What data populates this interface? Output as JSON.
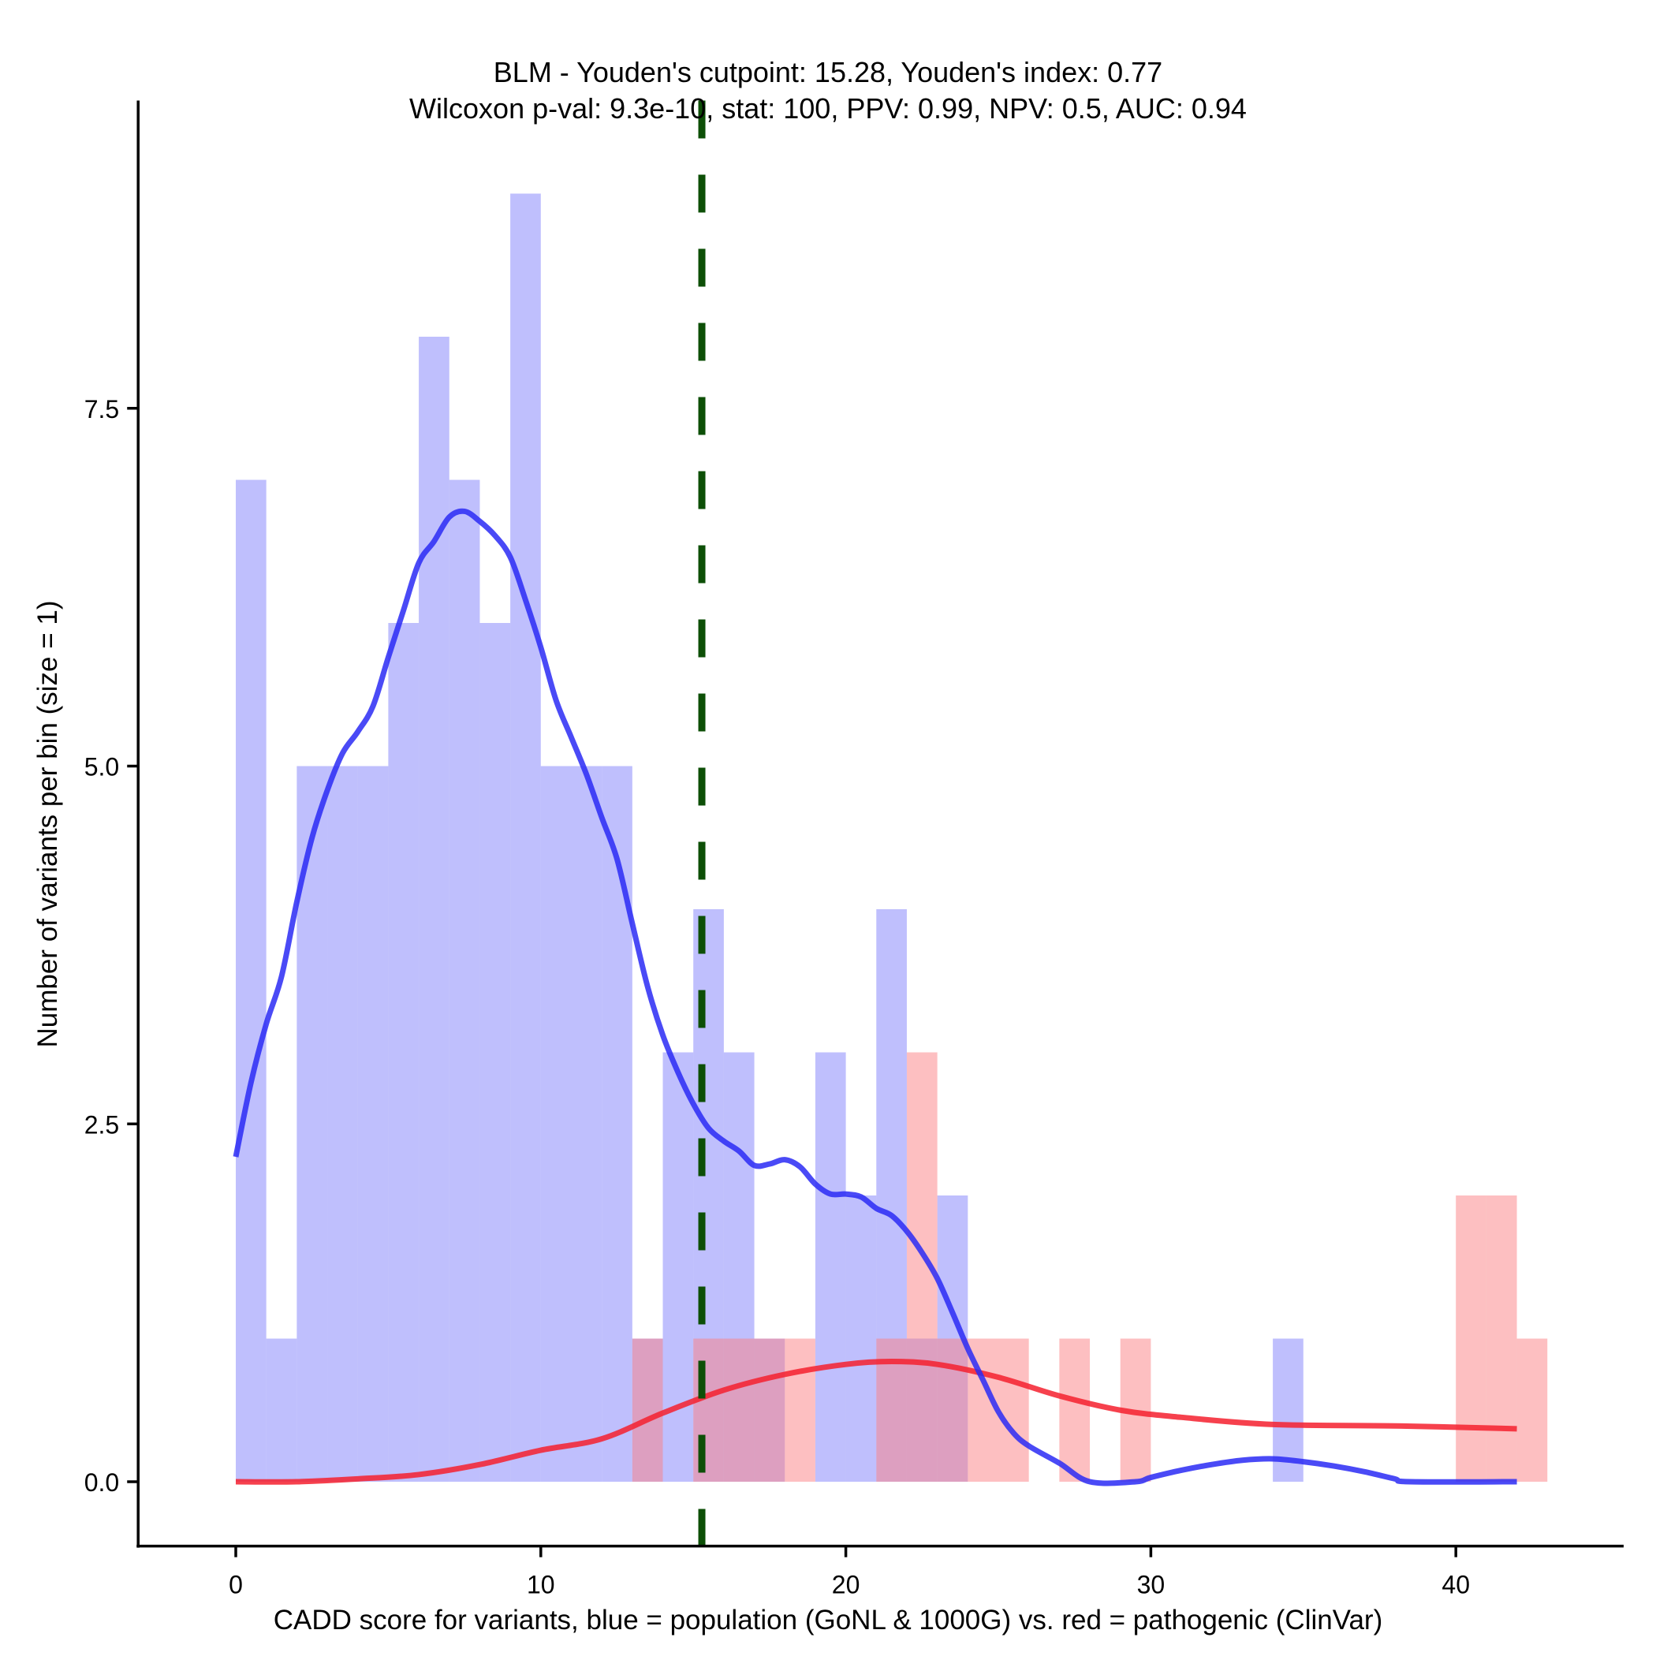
{
  "chart_data": {
    "type": "histogram",
    "title_line1": "BLM - Youden's cutpoint: 15.28, Youden's index: 0.77",
    "title_line2": "Wilcoxon p-val: 9.3e-10, stat: 100, PPV: 0.99, NPV: 0.5, AUC: 0.94",
    "xlabel": "CADD score for variants, blue = population (GoNL & 1000G) vs. red = pathogenic (ClinVar)",
    "ylabel": "Number of variants per bin (size = 1)",
    "xlim": [
      -3.2,
      45.5
    ],
    "ylim": [
      -0.45,
      9.65
    ],
    "x_ticks": [
      0,
      10,
      20,
      30,
      40
    ],
    "x_tick_labels": [
      "0",
      "10",
      "20",
      "30",
      "40"
    ],
    "y_ticks": [
      0,
      2.5,
      5,
      7.5
    ],
    "y_tick_labels": [
      "0.0",
      "2.5",
      "5.0",
      "7.5"
    ],
    "bin_width": 1,
    "cutpoint": 15.28,
    "grid": false,
    "legend": "none",
    "colors": {
      "population_bar": "#bfbffd",
      "pathogenic_bar": "#fdbfc1",
      "overlap_bar": "#ce8fc1",
      "population_line": "#2a2af5",
      "pathogenic_line": "#f5202e",
      "cutpoint_line": "#0d4f07"
    },
    "series": [
      {
        "name": "population (GoNL & 1000G)",
        "color": "blue",
        "bins": [
          {
            "x": 0,
            "count": 7
          },
          {
            "x": 1,
            "count": 1
          },
          {
            "x": 2,
            "count": 5
          },
          {
            "x": 3,
            "count": 5
          },
          {
            "x": 4,
            "count": 5
          },
          {
            "x": 5,
            "count": 6
          },
          {
            "x": 6,
            "count": 8
          },
          {
            "x": 7,
            "count": 7
          },
          {
            "x": 8,
            "count": 6
          },
          {
            "x": 9,
            "count": 9
          },
          {
            "x": 10,
            "count": 5
          },
          {
            "x": 11,
            "count": 5
          },
          {
            "x": 12,
            "count": 5
          },
          {
            "x": 13,
            "count": 1
          },
          {
            "x": 14,
            "count": 3
          },
          {
            "x": 15,
            "count": 4
          },
          {
            "x": 16,
            "count": 3
          },
          {
            "x": 17,
            "count": 1
          },
          {
            "x": 19,
            "count": 3
          },
          {
            "x": 20,
            "count": 2
          },
          {
            "x": 21,
            "count": 4
          },
          {
            "x": 22,
            "count": 1
          },
          {
            "x": 23,
            "count": 2
          },
          {
            "x": 34,
            "count": 1
          }
        ],
        "density_curve": [
          [
            0,
            2.27
          ],
          [
            0.5,
            2.79
          ],
          [
            1,
            3.2
          ],
          [
            1.5,
            3.53
          ],
          [
            2,
            4.05
          ],
          [
            2.5,
            4.5
          ],
          [
            3,
            4.83
          ],
          [
            3.5,
            5.09
          ],
          [
            4,
            5.24
          ],
          [
            4.5,
            5.42
          ],
          [
            5,
            5.76
          ],
          [
            5.5,
            6.09
          ],
          [
            6,
            6.42
          ],
          [
            6.5,
            6.57
          ],
          [
            7,
            6.74
          ],
          [
            7.5,
            6.78
          ],
          [
            8,
            6.71
          ],
          [
            8.5,
            6.61
          ],
          [
            9,
            6.46
          ],
          [
            9.5,
            6.16
          ],
          [
            10,
            5.83
          ],
          [
            10.5,
            5.46
          ],
          [
            11,
            5.2
          ],
          [
            11.5,
            4.94
          ],
          [
            12,
            4.64
          ],
          [
            12.5,
            4.35
          ],
          [
            13,
            3.9
          ],
          [
            13.5,
            3.46
          ],
          [
            14,
            3.12
          ],
          [
            14.5,
            2.86
          ],
          [
            15,
            2.64
          ],
          [
            15.5,
            2.47
          ],
          [
            16,
            2.38
          ],
          [
            16.5,
            2.31
          ],
          [
            17,
            2.21
          ],
          [
            17.5,
            2.22
          ],
          [
            18,
            2.25
          ],
          [
            18.5,
            2.2
          ],
          [
            19,
            2.08
          ],
          [
            19.5,
            2.01
          ],
          [
            20,
            2.01
          ],
          [
            20.5,
            1.99
          ],
          [
            21,
            1.91
          ],
          [
            21.5,
            1.86
          ],
          [
            22,
            1.75
          ],
          [
            22.5,
            1.6
          ],
          [
            23,
            1.42
          ],
          [
            23.5,
            1.18
          ],
          [
            24,
            0.93
          ],
          [
            24.5,
            0.71
          ],
          [
            25,
            0.49
          ],
          [
            25.5,
            0.34
          ],
          [
            26,
            0.25
          ],
          [
            27,
            0.13
          ],
          [
            28,
            0
          ],
          [
            29.5,
            0
          ],
          [
            30,
            0.03
          ],
          [
            31,
            0.08
          ],
          [
            32,
            0.12
          ],
          [
            33,
            0.15
          ],
          [
            34,
            0.16
          ],
          [
            35,
            0.14
          ],
          [
            36,
            0.11
          ],
          [
            37,
            0.07
          ],
          [
            38,
            0.02
          ],
          [
            38.5,
            0
          ],
          [
            42,
            0
          ]
        ]
      },
      {
        "name": "pathogenic (ClinVar)",
        "color": "red",
        "bins": [
          {
            "x": 13,
            "count": 1
          },
          {
            "x": 15,
            "count": 1
          },
          {
            "x": 16,
            "count": 1
          },
          {
            "x": 17,
            "count": 1
          },
          {
            "x": 18,
            "count": 1
          },
          {
            "x": 21,
            "count": 1
          },
          {
            "x": 22,
            "count": 3
          },
          {
            "x": 23,
            "count": 1
          },
          {
            "x": 24,
            "count": 1
          },
          {
            "x": 25,
            "count": 1
          },
          {
            "x": 27,
            "count": 1
          },
          {
            "x": 29,
            "count": 1
          },
          {
            "x": 40,
            "count": 2
          },
          {
            "x": 41,
            "count": 2
          },
          {
            "x": 42,
            "count": 1
          }
        ],
        "density_curve": [
          [
            0,
            0
          ],
          [
            2,
            0
          ],
          [
            4,
            0.02
          ],
          [
            6,
            0.05
          ],
          [
            8,
            0.12
          ],
          [
            10,
            0.22
          ],
          [
            12,
            0.3
          ],
          [
            14,
            0.48
          ],
          [
            16,
            0.64
          ],
          [
            18,
            0.75
          ],
          [
            20,
            0.82
          ],
          [
            21.5,
            0.84
          ],
          [
            23,
            0.82
          ],
          [
            25,
            0.73
          ],
          [
            27,
            0.6
          ],
          [
            29,
            0.5
          ],
          [
            31,
            0.45
          ],
          [
            34,
            0.4
          ],
          [
            38,
            0.39
          ],
          [
            42,
            0.37
          ]
        ]
      }
    ]
  }
}
